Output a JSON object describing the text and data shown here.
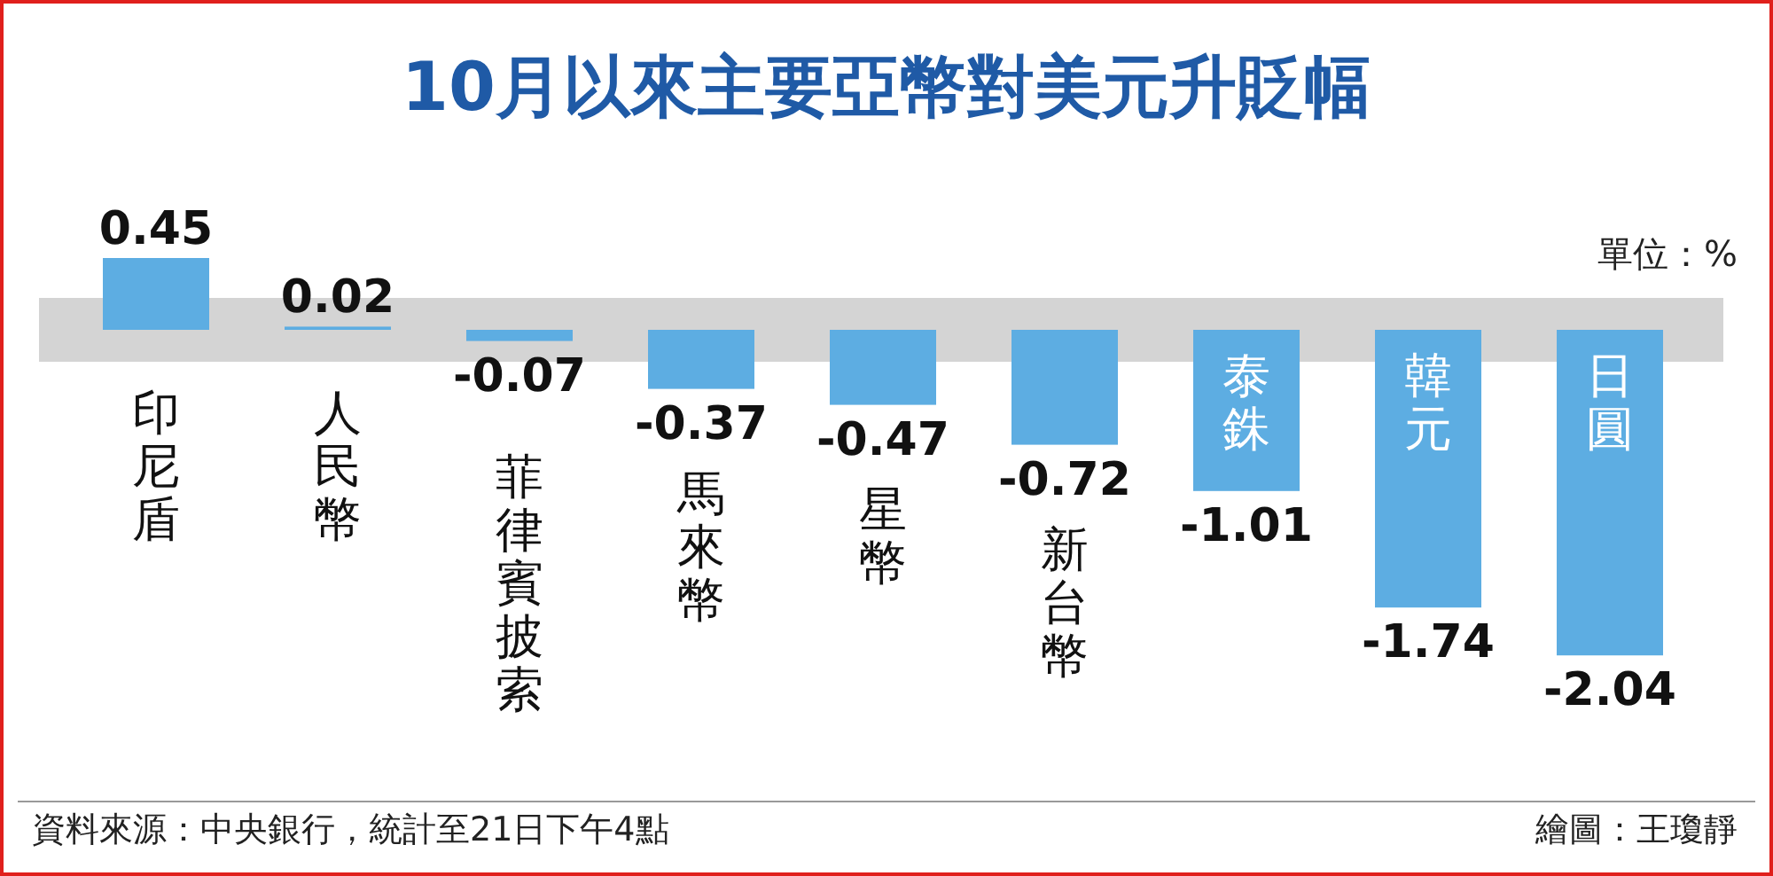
{
  "chart_data": {
    "type": "bar",
    "title": "10月以來主要亞幣對美元升貶幅",
    "categories": [
      "印尼盾",
      "人民幣",
      "菲律賓披索",
      "馬來幣",
      "星幣",
      "新台幣",
      "泰銖",
      "韓元",
      "日圓"
    ],
    "values": [
      0.45,
      0.02,
      -0.07,
      -0.37,
      -0.47,
      -0.72,
      -1.01,
      -1.74,
      -2.04
    ],
    "color": "#5dade2",
    "data_labels": true,
    "annotations": [
      "單位：%",
      "資料來源：中央銀行，統計至21日下午4點",
      "繪圖：王瓊靜"
    ]
  }
}
